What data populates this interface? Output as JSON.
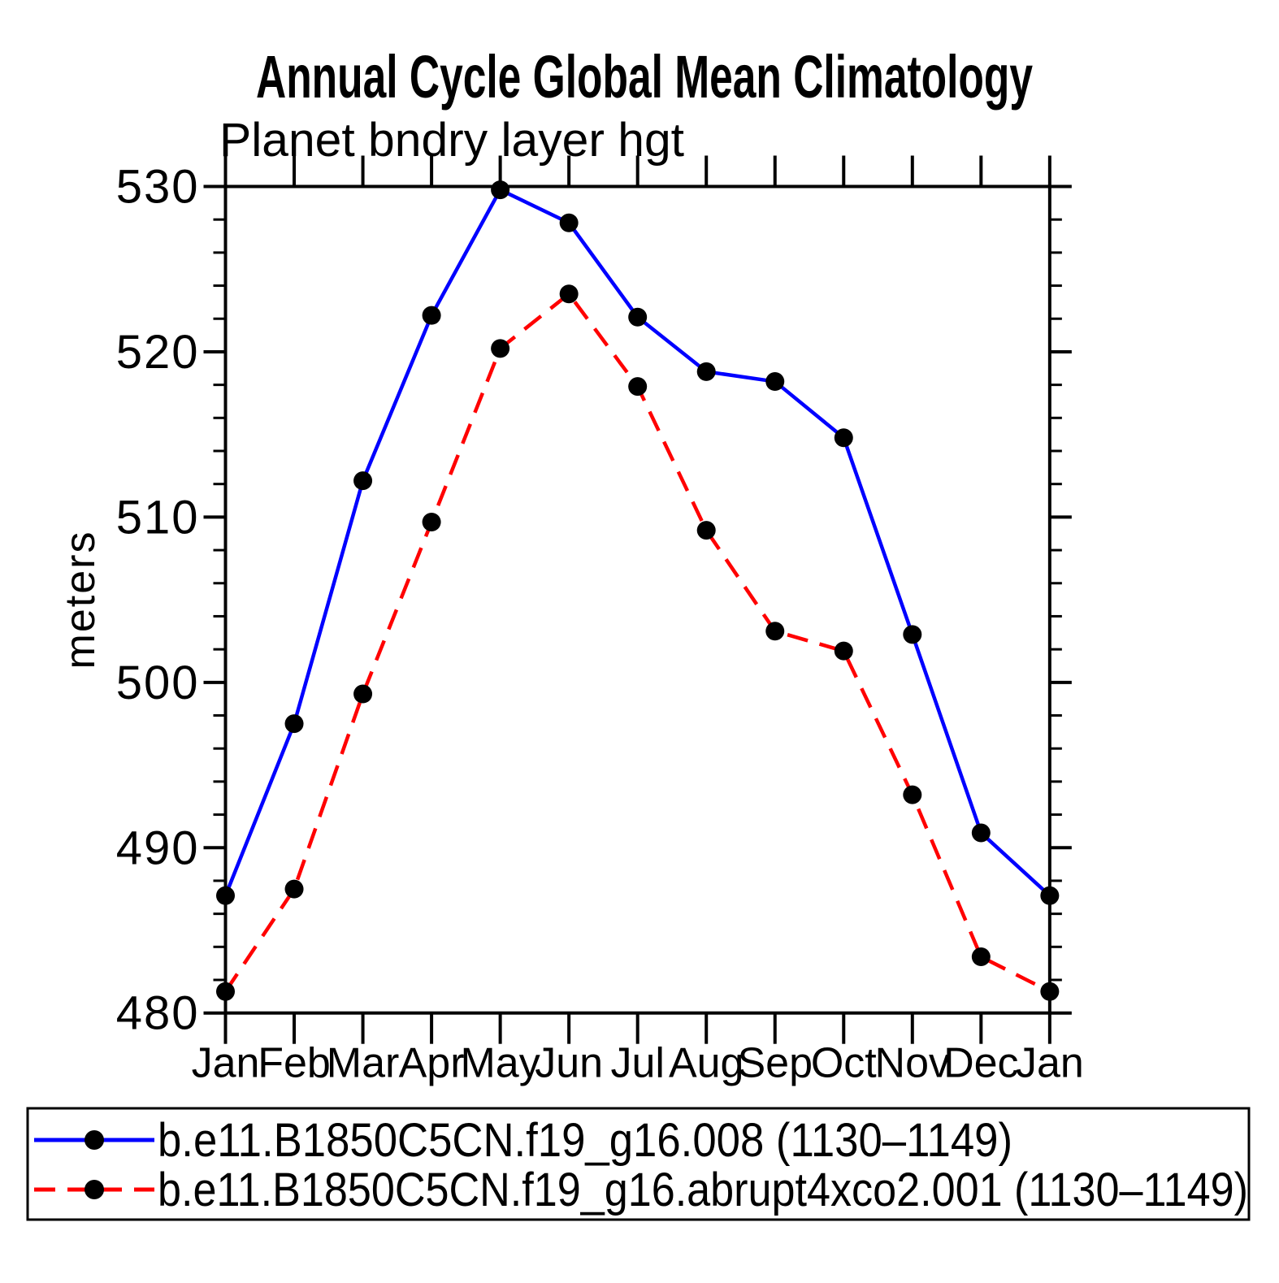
{
  "title": "Annual Cycle Global Mean Climatology",
  "chart_data": {
    "type": "line",
    "title": "Annual Cycle Global Mean Climatology",
    "subtitle": "Planet bndry layer hgt",
    "ylabel": "meters",
    "xlabel": "",
    "categories": [
      "Jan",
      "Feb",
      "Mar",
      "Apr",
      "May",
      "Jun",
      "Jul",
      "Aug",
      "Sep",
      "Oct",
      "Nov",
      "Dec",
      "Jan"
    ],
    "ylim": [
      480,
      530
    ],
    "y_major_ticks": [
      480,
      490,
      500,
      510,
      520,
      530
    ],
    "y_minor_tick_interval": 2,
    "grid": false,
    "legend_position": "bottom",
    "background_color": "#ffffff",
    "frame_color": "#000000",
    "marker": "filled-circle",
    "marker_color": "#000000",
    "series": [
      {
        "id": "control",
        "name": "b.e11.B1850C5CN.f19_g16.008 (1130–1149)",
        "color": "#0000ff",
        "style": "solid",
        "values": [
          487.1,
          497.5,
          512.2,
          522.2,
          529.8,
          527.8,
          522.1,
          518.8,
          518.2,
          514.8,
          502.9,
          490.9,
          487.1
        ]
      },
      {
        "id": "abrupt4xco2",
        "name": "b.e11.B1850C5CN.f19_g16.abrupt4xco2.001 (1130–1149)",
        "color": "#ff0000",
        "style": "dashed",
        "values": [
          481.3,
          487.5,
          499.3,
          509.7,
          520.2,
          523.5,
          517.9,
          509.2,
          503.1,
          501.9,
          493.2,
          483.4,
          481.3
        ]
      }
    ]
  }
}
